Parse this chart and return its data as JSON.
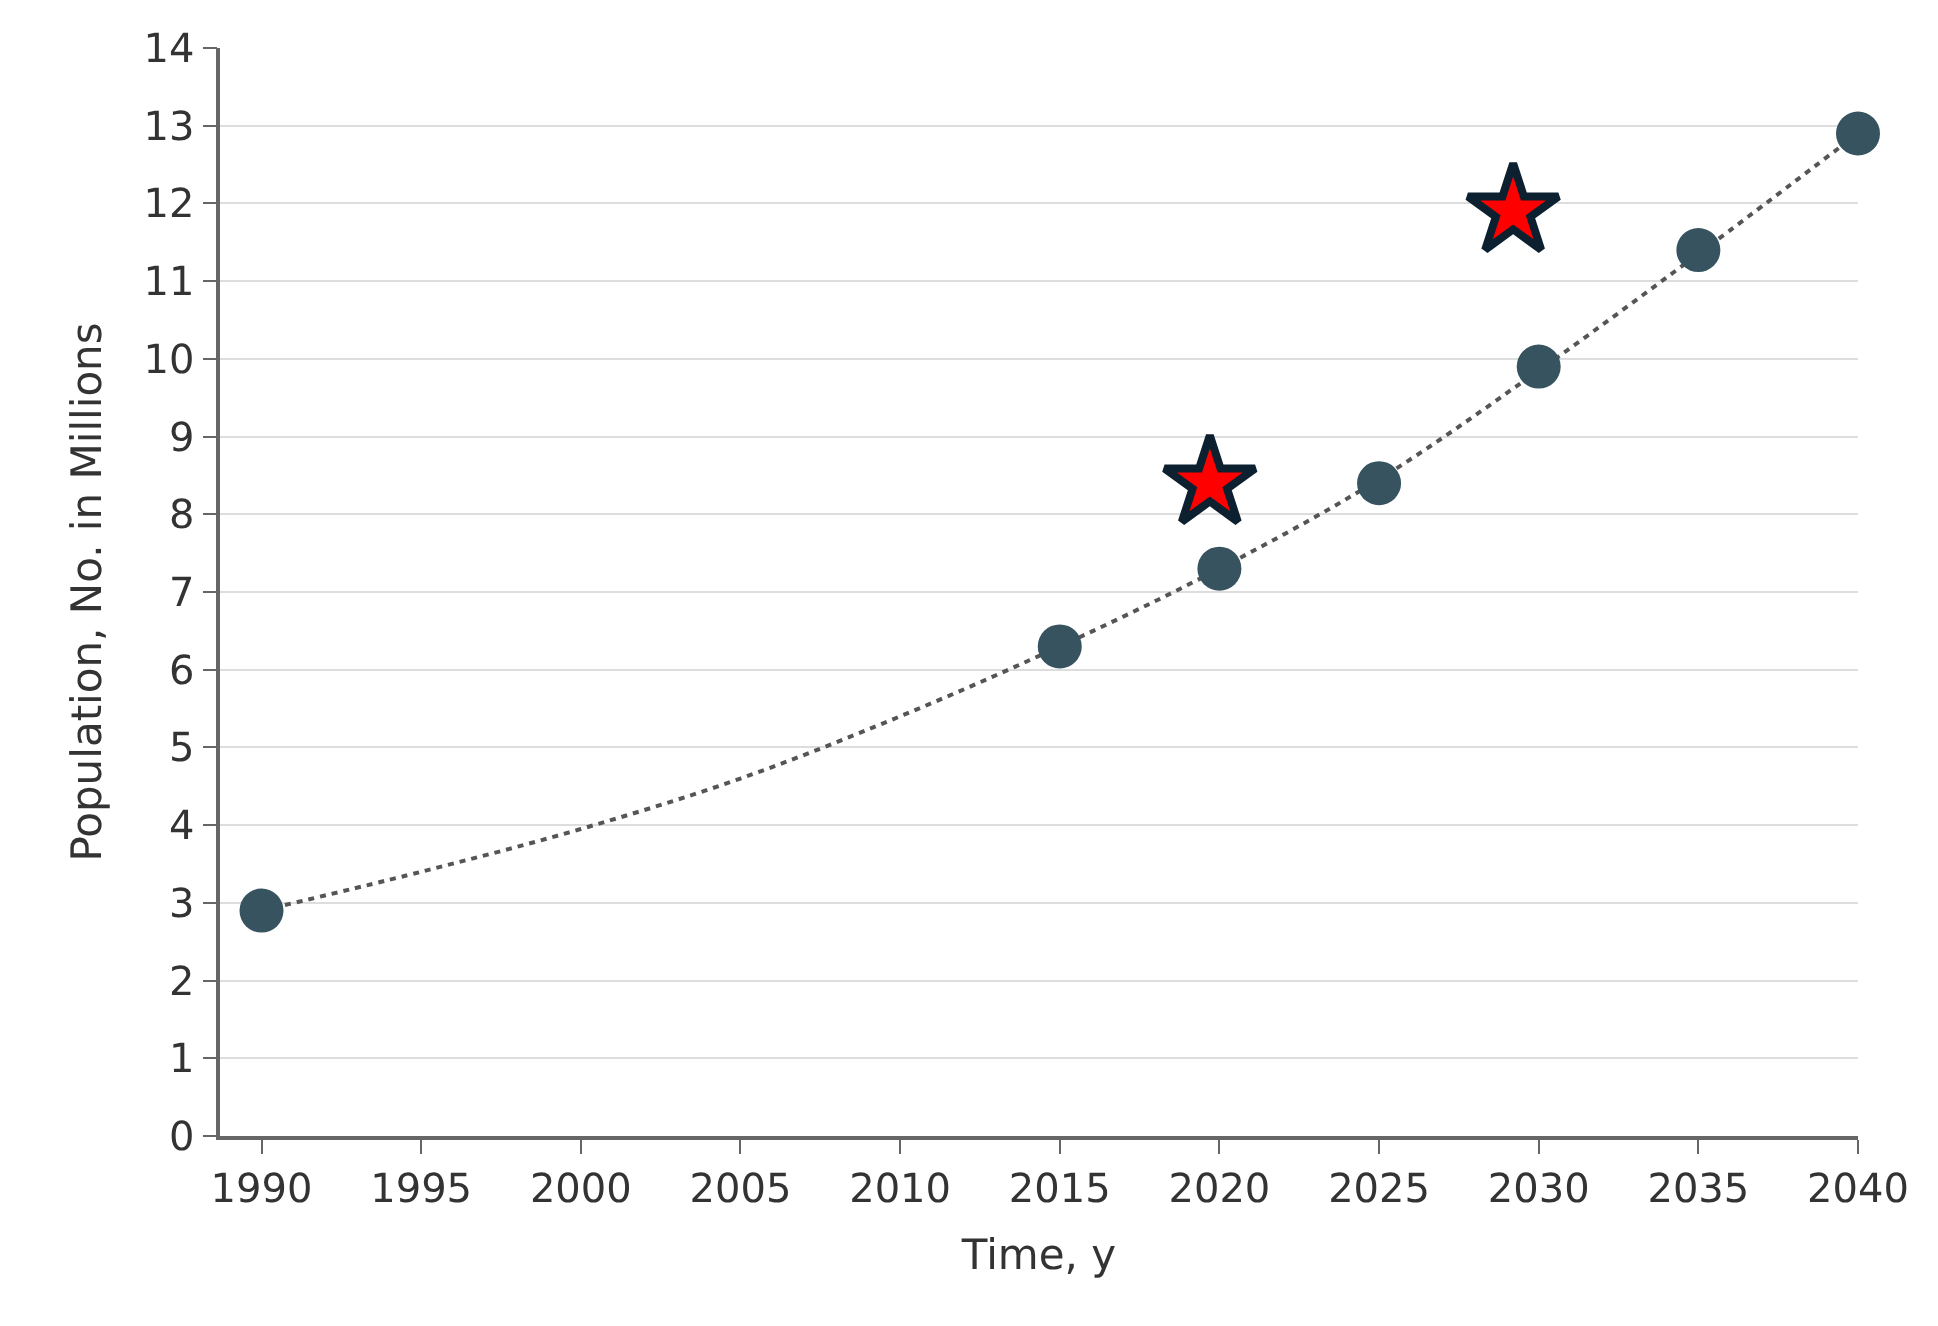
{
  "chart_data": {
    "type": "scatter",
    "xlabel": "Time, y",
    "ylabel": "Population, No. in Millions",
    "xlim": [
      1988.7,
      2040
    ],
    "xticks": [
      1990,
      1995,
      2000,
      2005,
      2010,
      2015,
      2020,
      2025,
      2030,
      2035,
      2040
    ],
    "ylim": [
      0,
      14
    ],
    "yticks": [
      0,
      1,
      2,
      3,
      4,
      5,
      6,
      7,
      8,
      9,
      10,
      11,
      12,
      13,
      14
    ],
    "grid": "y",
    "series": [
      {
        "type": "line",
        "line_style": "dotted",
        "marker": "none",
        "color": "#555555",
        "x": [
          1990,
          1995,
          2000,
          2005,
          2010,
          2015,
          2020,
          2025,
          2030,
          2035,
          2040
        ],
        "values": [
          2.9,
          3.4,
          3.95,
          4.6,
          5.4,
          6.3,
          7.3,
          8.45,
          9.85,
          11.35,
          12.9
        ]
      },
      {
        "marker": "circle",
        "color": "#37535f",
        "x": [
          1990,
          2015,
          2020,
          2025,
          2030,
          2035,
          2040
        ],
        "values": [
          2.9,
          6.3,
          7.3,
          8.4,
          9.9,
          11.4,
          12.9
        ]
      },
      {
        "marker": "star",
        "color": "#ff0000",
        "x": [
          2019.7,
          2029.2
        ],
        "values": [
          8.4,
          11.9
        ]
      }
    ]
  }
}
